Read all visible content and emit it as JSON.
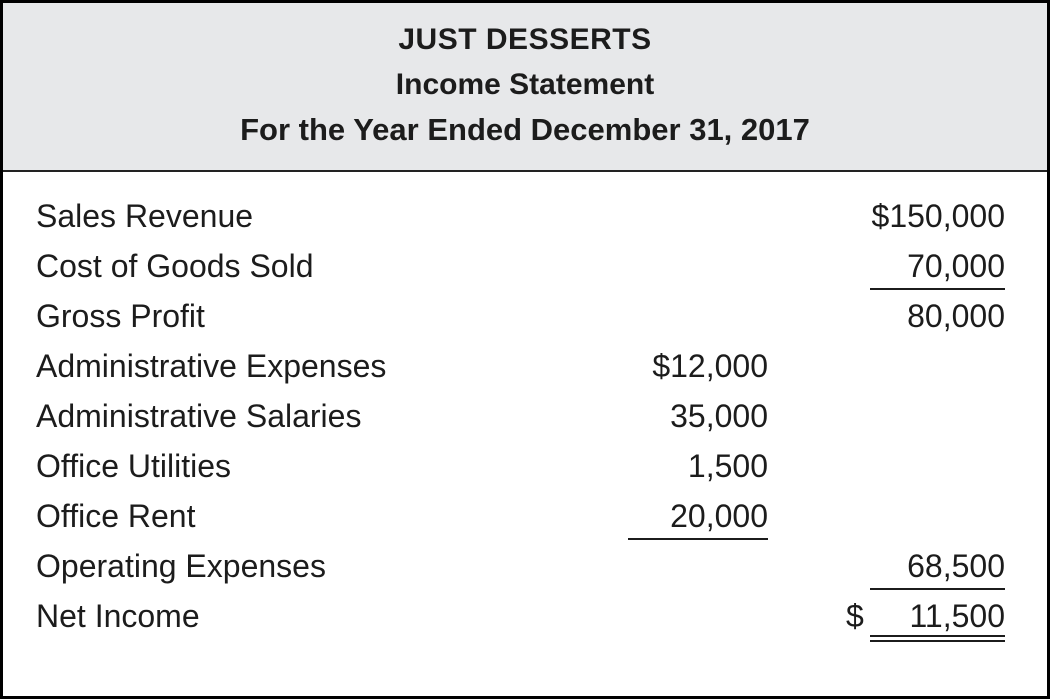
{
  "header": {
    "company_name": "JUST DESSERTS",
    "statement_title": "Income Statement",
    "period": "For the Year Ended December 31, 2017"
  },
  "statement": {
    "rows": [
      {
        "label": "Sales Revenue",
        "col_right": "$150,000"
      },
      {
        "label": "Cost of Goods Sold",
        "col_right": "70,000",
        "right_rule": "single"
      },
      {
        "label": "Gross Profit",
        "col_right": "80,000"
      },
      {
        "label": "Administrative Expenses",
        "col_mid": "$12,000"
      },
      {
        "label": "Administrative Salaries",
        "col_mid": "35,000"
      },
      {
        "label": "Office Utilities",
        "col_mid": "1,500"
      },
      {
        "label": "Office Rent",
        "col_mid": "20,000",
        "mid_rule": "single"
      },
      {
        "label": "Operating Expenses",
        "col_right": "68,500",
        "right_rule": "single"
      },
      {
        "label": "Net Income",
        "currency": "$",
        "col_right": "11,500",
        "right_rule": "double"
      }
    ]
  },
  "colors": {
    "header_background": "#e7e8ea",
    "border": "#000000",
    "text": "#1c1c1c",
    "rule": "#1c1c1c"
  }
}
